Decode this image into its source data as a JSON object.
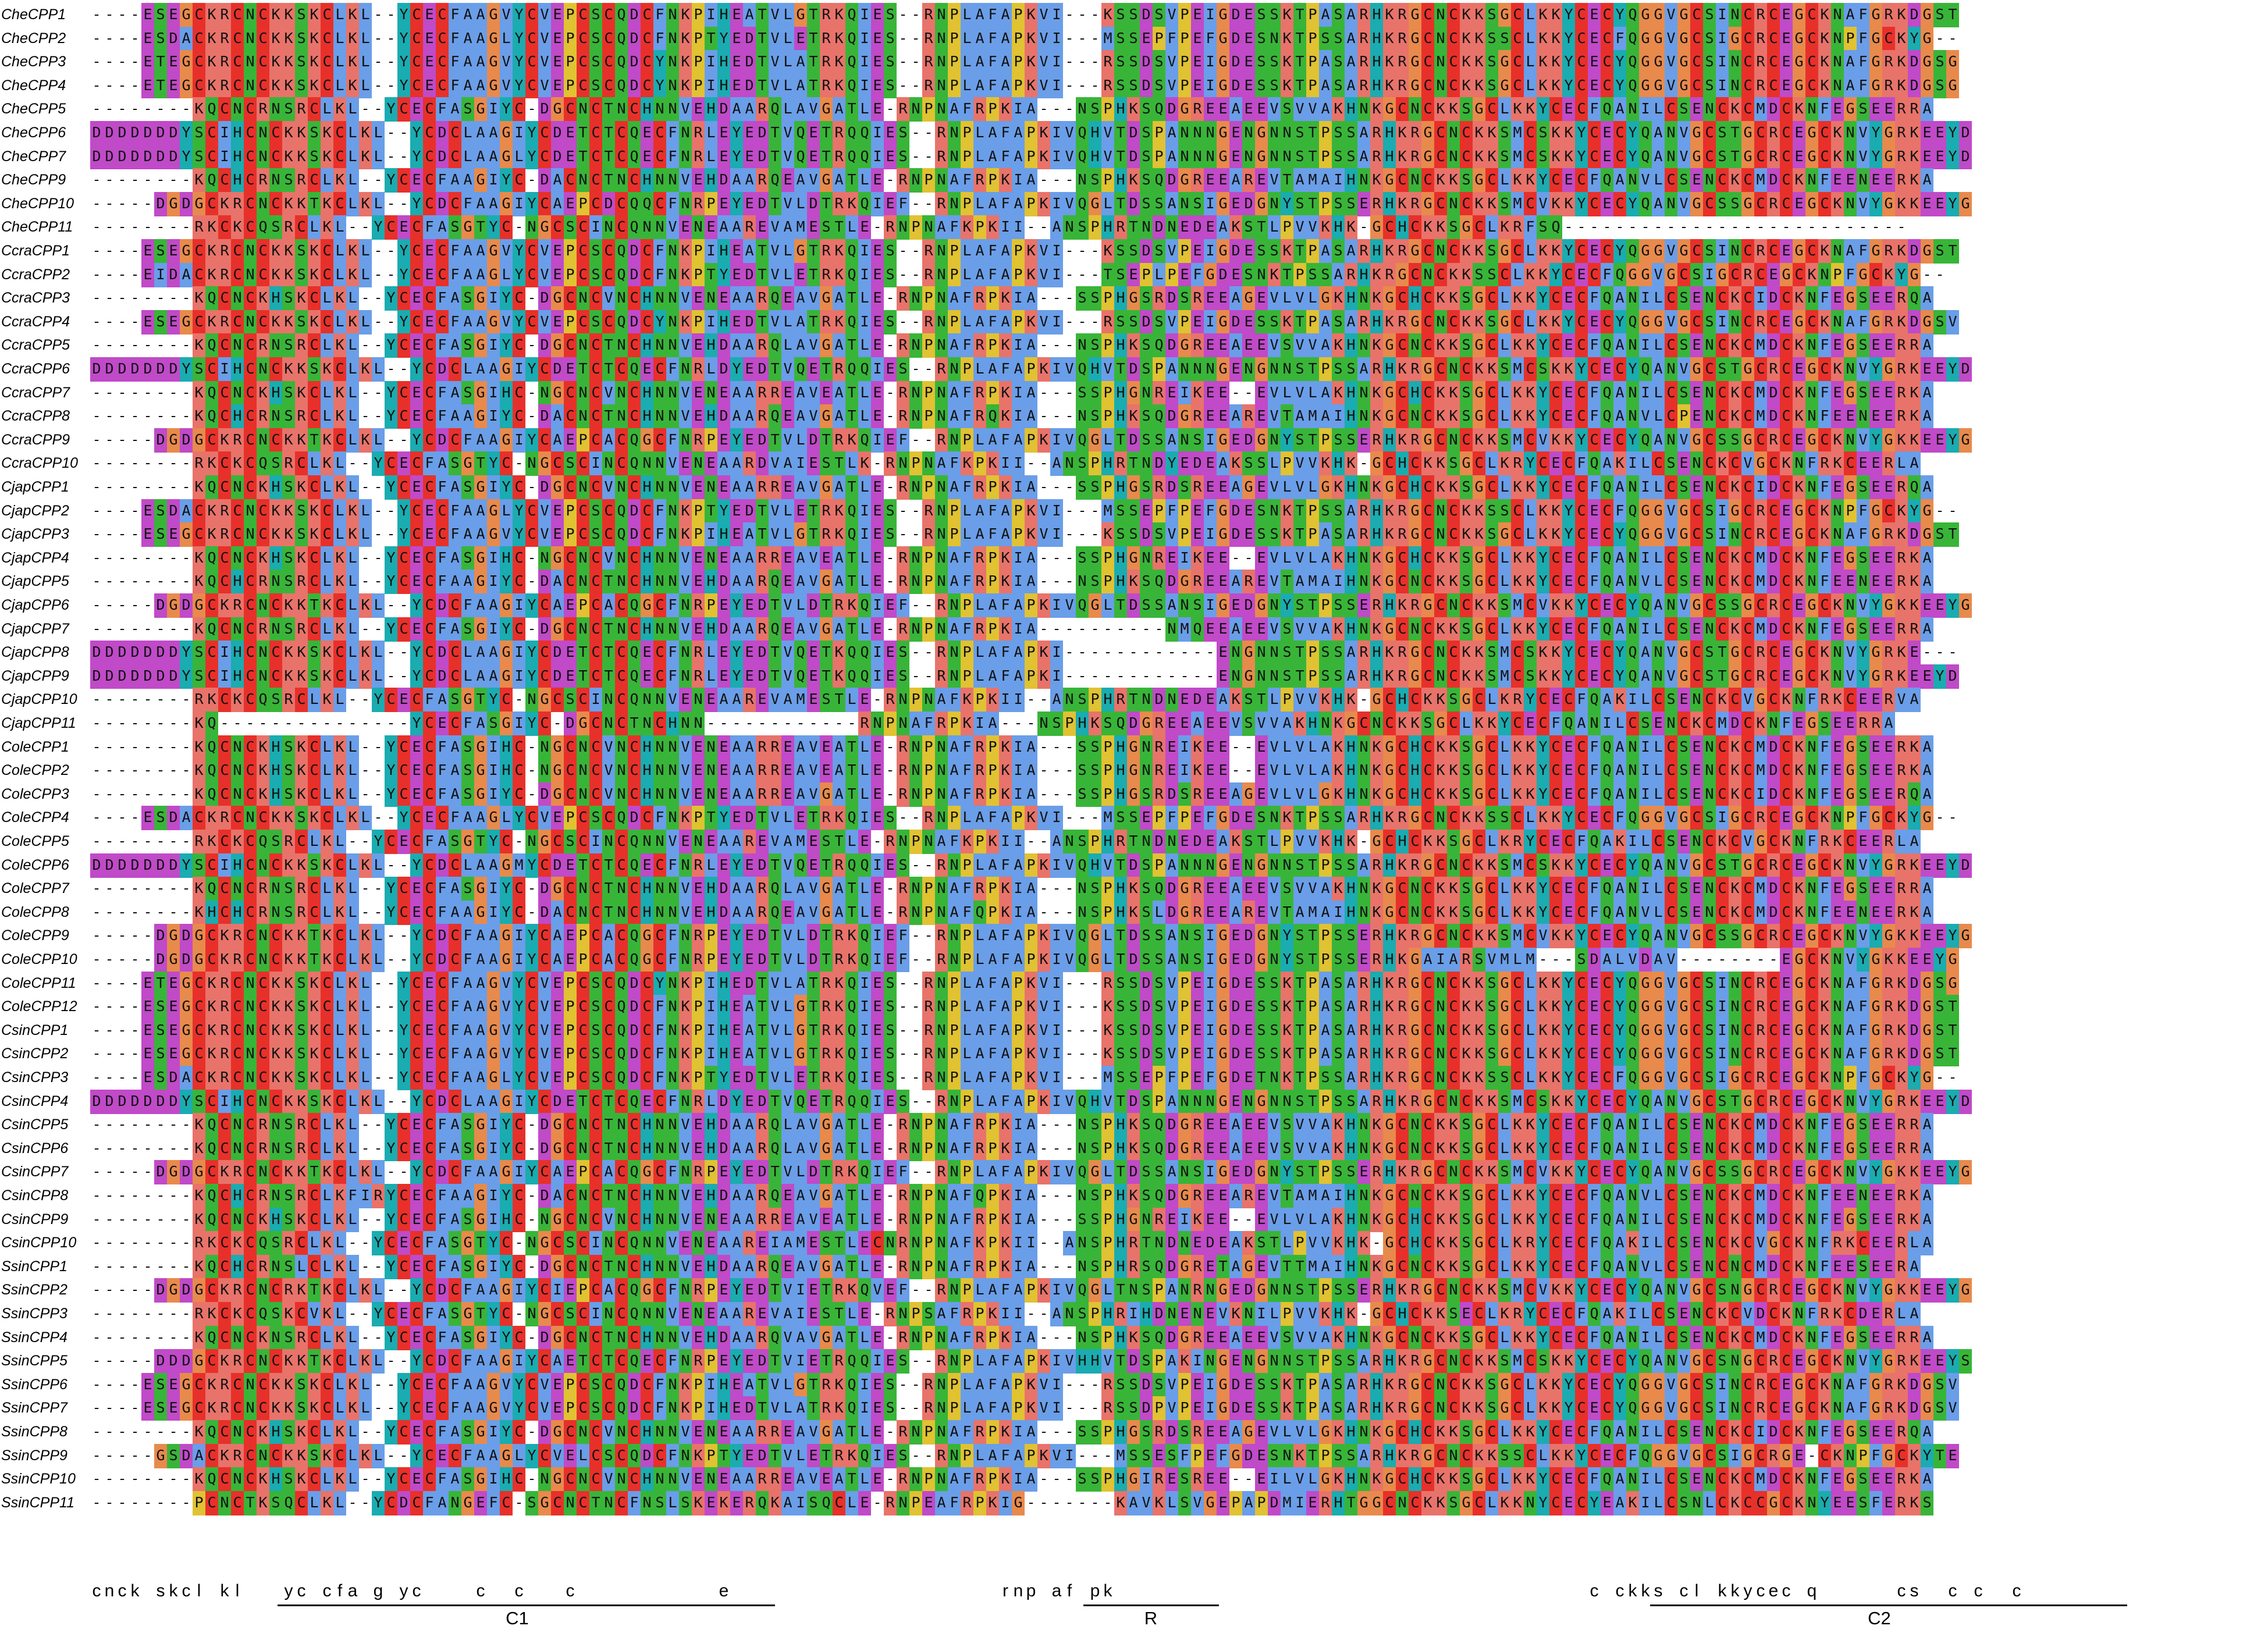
{
  "alignment": {
    "labels": [
      "CheCPP1",
      "CheCPP2",
      "CheCPP3",
      "CheCPP4",
      "CheCPP5",
      "CheCPP6",
      "CheCPP7",
      "CheCPP9",
      "CheCPP10",
      "CheCPP11",
      "CcraCPP1",
      "CcraCPP2",
      "CcraCPP3",
      "CcraCPP4",
      "CcraCPP5",
      "CcraCPP6",
      "CcraCPP7",
      "CcraCPP8",
      "CcraCPP9",
      "CcraCPP10",
      "CjapCPP1",
      "CjapCPP2",
      "CjapCPP3",
      "CjapCPP4",
      "CjapCPP5",
      "CjapCPP6",
      "CjapCPP7",
      "CjapCPP8",
      "CjapCPP9",
      "CjapCPP10",
      "CjapCPP11",
      "ColeCPP1",
      "ColeCPP2",
      "ColeCPP3",
      "ColeCPP4",
      "ColeCPP5",
      "ColeCPP6",
      "ColeCPP7",
      "ColeCPP8",
      "ColeCPP9",
      "ColeCPP10",
      "ColeCPP11",
      "ColeCPP12",
      "CsinCPP1",
      "CsinCPP2",
      "CsinCPP3",
      "CsinCPP4",
      "CsinCPP5",
      "CsinCPP6",
      "CsinCPP7",
      "CsinCPP8",
      "CsinCPP9",
      "CsinCPP10",
      "SsinCPP1",
      "SsinCPP2",
      "SsinCPP3",
      "SsinCPP4",
      "SsinCPP5",
      "SsinCPP6",
      "SsinCPP7",
      "SsinCPP8",
      "SsinCPP9",
      "SsinCPP10",
      "SsinCPP11"
    ],
    "sequences": [
      "----ESEGCKRCNCKKSKCLKL--YCECFAAGVYCVEPCSCQDCFNKPIHEATVLGTRKQIES--RNPLAFAPKVI---KSSDSVPEIGDESSKTPASARHKRGCNCKKSGCLKKYCECYQGGVGCSINCRCEGCKNAFGRKDGST",
      "----ESDACKRCNCKKSKCLKL--YCECFAAGLYCVEPCSCQDCFNKPTYEDTVLETRKQIES--RNPLAFAPKVI---MSSEPFPEFGDESNKTPSSARHKRGCNCKKSSCLKKYCECFQGGVGCSIGCRCEGCKNPFGCKYG--",
      "----ETEGCKRCNCKKSKCLKL--YCECFAAGVYCVEPCSCQDCYNKPIHEDTVLATRKQIES--RNPLAFAPKVI---RSSDSVPEIGDESSKTPASARHKRGCNCKKSGCLKKYCECYQGGVGCSINCRCEGCKNAFGRKDGSG",
      "----ETEGCKRCNCKKSKCLKL--YCECFAAGVYCVEPCSCQDCYNKPIHEDTVLATRKQIES--RNPLAFAPKVI---RSSDSVPEIGDESSKTPASARHKRGCNCKKSGCLKKYCECYQGGVGCSINCRCEGCKNAFGRKDGSG",
      "--------KQCNCRNSRCLKL--YCECFASGIYC-DGCNCTNCHNNVEHDAARQLAVGATLE-RNPNAFRPKIA---NSPHKSQDGREEAEEVSVVAKHNKGCNCKKSGCLKKYCECFQANILCSENCKCMDCKNFEGSEERRA",
      "DDDDDDDYSCIHCNCKKSKCLKL--YCDCLAAGIYCDETCTCQECFNRLEYEDTVQETRQQIES--RNPLAFAPKIVQHVTDSPANNNGENGNNSTPSSARHKRGCNCKKSMCSKKYCECYQANVGCSTGCRCEGCKNVYGRKEEYD",
      "DDDDDDDYSCIHCNCKKSKCLKL--YCDCLAAGLYCDETCTCQECFNRLEYEDTVQETRQQIES--RNPLAFAPKIVQHVTDSPANNNGENGNNSTPSSARHKRGCNCKKSMCSKKYCECYQANVGCSTGCRCEGCKNVYGRKEEYD",
      "--------KQCHCRNSRCLKL--YCECFAAGIYC-DACNCTNCHNNVEHDAARQEAVGATLE-RNPNAFRPKIA---NSPHKSQDGREEAREVTAMAIHNKGCNCKKSGCLKKYCECFQANVLCSENCKCMDCKNFEENEERKA",
      "-----DGDGCKRCNCKKTKCLKL--YCDCFAAGIYCAEPCDCQQCFNRPEYEDTVLDTRKQIEF--RNPLAFAPKIVQGLTDSSANSIGEDGNYSTPSSERHKRGCNCKKSMCVKKYCECYQANVGCSSGCRCEGCKNVYGKKEEYG",
      "--------RKCKCQSRCLKL--YCECFASGTYC-NGCSCINCQNNVENEAAREVAMESTLE-RNPNAFKPKII--ANSPHRTNDNEDEAKSTLPVVKHK-GCHCKKSGCLKRFSQ---------------------------",
      "----ESEGCKRCNCKKSKCLKL--YCECFAAGVYCVEPCSCQDCFNKPIHEATVLGTRKQIES--RNPLAFAPKVI---KSSDSVPEIGDESSKTPASARHKRGCNCKKSGCLKKYCECYQGGVGCSINCRCEGCKNAFGRKDGST",
      "----EIDACKRCNCKKSKCLKL--YCECFAAGLYCVEPCSCQDCFNKPTYEDTVLETRKQIES--RNPLAFAPKVI---TSEPLPEFGDESNKTPSSARHKRGCNCKKSSCLKKYCECFQGGVGCSIGCRCEGCKNPFGCKYG--",
      "--------KQCNCKHSKCLKL--YCECFASGIYC-DGCNCVNCHNNVENEAARQEAVGATLE-RNPNAFRPKIA---SSPHGSRDSREEAGEVLVLGKHNKGCHCKKSGCLKKYCECFQANILCSENCKCIDCKNFEGSEERQA",
      "----ESEGCKRCNCKKSKCLKL--YCECFAAGVYCVEPCSCQDCYNKPIHEDTVLATRKQIES--RNPLAFAPKVI---RSSDSVPEIGDESSKTPASARHKRGCNCKKSGCLKKYCECYQGGVGCSINCRCEGCKNAFGRKDGSV",
      "--------KQCNCRNSRCLKL--YCECFASGIYC-DGCNCTNCHNNVEHDAARQLAVGATLE-RNPNAFRPKIA---NSPHKSQDGREEAEEVSVVAKHNKGCNCKKSGCLKKYCECFQANILCSENCKCMDCKNFEGSEERRA",
      "DDDDDDDYSCIHCNCKKSKCLKL--YCDCLAAGIYCDETCTCQECFNRLDYEDTVQETRQQIES--RNPLAFAPKIVQHVTDSPANNNGENGNNSTPSSARHKRGCNCKKSMCSKKYCECYQANVGCSTGCRCEGCKNVYGRKEEYD",
      "--------KQCNCKHSKCLKL--YCECFASGIHC-NGCNCVNCHNNVENEAARREAVEATLE-RNPNAFRPKIA---SSPHGNREIKEE--EVLVLAKHNKGCHCKKSGCLKKYCECFQANILCSENCKCMDCKNFEGSEERKA",
      "--------KQCHCRNSRCLKL--YCECFAAGIYC-DACNCTNCHNNVEHDAARQEAVGATLE-RNPNAFRQKIA---NSPHKSQDGREEAREVTAMAIHNKGCNCKKSGCLKKYCECFQANVLCPENCKCMDCKNFEENEERKA",
      "-----DGDGCKRCNCKKTKCLKL--YCDCFAAGIYCAEPCACQGCFNRPEYEDTVLDTRKQIEF--RNPLAFAPKIVQGLTDSSANSIGEDGNYSTPSSERHKRGCNCKKSMCVKKYCECYQANVGCSSGCRCEGCKNVYGKKEEYG",
      "--------RKCKCQSRCLKL--YCECFASGTYC-NGCSCINCQNNVENEAARDVAIESTLK-RNPNAFKPKII--ANSPHRTNDYEDEAKSSLPVVKHK-GCHCKKSGCLKRYCECFQAKILCSENCKCVGCKNFRKCEERLA",
      "--------KQCNCKHSKCLKL--YCECFASGIYC-DGCNCVNCHNNVENEAARREAVGATLE-RNPNAFRPKIA---SSPHGSRDSREEAGEVLVLGKHNKGCHCKKSGCLKKYCECFQANILCSENCKCIDCKNFEGSEERQA",
      "----ESDACKRCNCKKSKCLKL--YCECFAAGLYCVEPCSCQDCFNKPTYEDTVLETRKQIES--RNPLAFAPKVI---MSSEPFPEFGDESNKTPSSARHKRGCNCKKSSCLKKYCECFQGGVGCSIGCRCEGCKNPFGCKYG--",
      "----ESEGCKRCNCKKSKCLKL--YCECFAAGVYCVEPCSCQDCFNKPIHEATVLGTRKQIES--RNPLAFAPKVI---KSSDSVPEIGDESSKTPASARHKRGCNCKKSGCLKKYCECYQGGVGCSINCRCEGCKNAFGRKDGST",
      "--------KQCNCKHSKCLKL--YCECFASGIHC-NGCNCVNCHNNVENEAARREAVEATLE-RNPNAFRPKIA---SSPHGNREIKEE--EVLVLAKHNKGCHCKKSGCLKKYCECFQANILCSENCKCMDCKNFEGSEERKA",
      "--------KQCHCRNSRCLKL--YCECFAAGIYC-DACNCTNCHNNVEHDAARQEAVGATLE-RNPNAFRPKIA---NSPHKSQDGREEAREVTAMAIHNKGCNCKKSGCLKKYCECFQANVLCSENCKCMDCKNFEENEERKA",
      "-----DGDGCKRCNCKKTKCLKL--YCDCFAAGIYCAEPCACQGCFNRPEYEDTVLDTRKQIEF--RNPLAFAPKIVQGLTDSSANSIGEDGNYSTPSSERHKRGCNCKKSMCVKKYCECYQANVGCSSGCRCEGCKNVYGKKEEYG",
      "--------KQCNCRNSRCLKL--YCECFASGIYC-DGCNCTNCHNNVEHDAARQEAVGATLE-RNPNAFRPKIA----------NMQEEAEEVSVVAKHNKGCNCKKSGCLKKYCECFQANILCSENCKCMDCKNFEGSEERRA",
      "DDDDDDDYSCIHCNCKKSKCLKL--YCDCLAAGIYCDETCTCQECFNRLEYEDTVQETKQQIES--RNPLAFAPKI------------ENGNNSTPSSARHKRGCNCKKSMCSKKYCECYQANVGCSTGCRCEGCKNVYGRKE---",
      "DDDDDDDYSCIHCNCKKSKCLKL--YCDCLAAGIYCDETCTCQECFNRLEYEDTVQETKQQIES--RNPLAFAPKI------------ENGNNSTPSSARHKRGCNCKKSMCSKKYCECYQANVGCSTGCRCEGCKNVYGRKEEYD",
      "--------RKCKCQSRCLKL--YCECFASGTYC-NGCSCINCQNNVENEAAREVAMESTLE-RNPNAFKPKII--ANSPHRTNDNEDEAKSTLPVVKHK-GCHCKKSGCLKRYCECFQAKILCSENCKCVGCKNFRKCEERVA",
      "--------KQ---------------YCECFASGIYC-DGCNCTNCHNN------------RNPNAFRPKIA---NSPHKSQDGREEAEEVSVVAKHNKGCNCKKSGCLKKYCECFQANILCSENCKCMDCKNFEGSEERRA",
      "--------KQCNCKHSKCLKL--YCECFASGIHC-NGCNCVNCHNNVENEAARREAVEATLE-RNPNAFRPKIA---SSPHGNREIKEE--EVLVLAKHNKGCHCKKSGCLKKYCECFQANILCSENCKCMDCKNFEGSEERKA",
      "--------KQCNCKHSKCLKL--YCECFASGIHC-NGCNCVNCHNNVENEAARREAVEATLE-RNPNAFRPKIA---SSPHGNREIKEE--EVLVLAKHNKGCHCKKSGCLKKYCECFQANILCSENCKCMDCKNFEGSEERKA",
      "--------KQCNCKHSKCLKL--YCECFASGIYC-DGCNCVNCHNNVENEAARREAVGATLE-RNPNAFRPKIA---SSPHGSRDSREEAGEVLVLGKHNKGCHCKKSGCLKKYCECFQANILCSENCKCIDCKNFEGSEERQA",
      "----ESDACKRCNCKKSKCLKL--YCECFAAGLYCVEPCSCQDCFNKPTYEDTVLETRKQIES--RNPLAFAPKVI---MSSEPFPEFGDESNKTPSSARHKRGCNCKKSSCLKKYCECFQGGVGCSIGCRCEGCKNPFGCKYG--",
      "--------RKCKCQSRCLKL--YCECFASGTYC-NGCSCINCQNNVENEAAREVAMESTLE-RNPNAFKPKII--ANSPHRTNDNEDEAKSTLPVVKHK-GCHCKKSGCLKRYCECFQAKILCSENCKCVGCKNFRKCEERLA",
      "DDDDDDDYSCIHCNCKKSKCLKL--YCDCLAAGMYCDETCTCQECFNRLEYEDTVQETRQQIES--RNPLAFAPKIVQHVTDSPANNNGENGNNSTPSSARHKRGCNCKKSMCSKKYCECYQANVGCSTGCRCEGCKNVYGRKEEYD",
      "--------KQCNCRNSRCLKL--YCECFASGIYC-DGCNCTNCHNNVEHDAARQLAVGATLE-RNPNAFRPKIA---NSPHKSQDGREEAEEVSVVAKHNKGCNCKKSGCLKKYCECFQANILCSENCKCMDCKNFEGSEERRA",
      "--------KHCHCRNSRCLKL--YCECFAAGIYC-DACNCTNCHNNVEHDAARQEAVGATLE-RNPNAFQPKIA---NSPHKSLDGREEAREVTAMAIHNKGCNCKKSGCLKKYCECFQANVLCSENCKCMDCKNFEENEERKA",
      "-----DGDGCKRCNCKKTKCLKL--YCDCFAAGIYCAEPCACQGCFNRPEYEDTVLDTRKQIEF--RNPLAFAPKIVQGLTDSSANSIGEDGNYSTPSSERHKRGCNCKKSMCVKKYCECYQANVGCSSGCRCEGCKNVYGKKEEYG",
      "-----DGDGCKRCNCKKTKCLKL--YCDCFAAGIYCAEPCACQGCFNRPEYEDTVLDTRKQIEF--RNPLAFAPKIVQGLTDSSANSIGEDGNYSTPSSERHKGAIARSVMLM---SDALVDAV--------EGCKNVYGKKEEYG",
      "----ETEGCKRCNCKKSKCLKL--YCECFAAGVYCVEPCSCQDCYNKPIHEDTVLATRKQIES--RNPLAFAPKVI---RSSDSVPEIGDESSKTPASARHKRGCNCKKSGCLKKYCECYQGGVGCSINCRCEGCKNAFGRKDGSG",
      "----ESEGCKRCNCKKSKCLKL--YCECFAAGVYCVEPCSCQDCFNKPIHEATVLGTRKQIES--RNPLAFAPKVI---KSSDSVPEIGDESSKTPASARHKRGCNCKKSGCLKKYCECYQGGVGCSINCRCEGCKNAFGRKDGST",
      "----ESEGCKRCNCKKSKCLKL--YCECFAAGVYCVEPCSCQDCFNKPIHEATVLGTRKQIES--RNPLAFAPKVI---KSSDSVPEIGDESSKTPASARHKRGCNCKKSGCLKKYCECYQGGVGCSINCRCEGCKNAFGRKDGST",
      "----ESEGCKRCNCKKSKCLKL--YCECFAAGVYCVEPCSCQDCFNKPIHEATVLGTRKQIES--RNPLAFAPKVI---KSSDSVPEIGDESSKTPASARHKRGCNCKKSGCLKKYCECYQGGVGCSINCRCEGCKNAFGRKDGST",
      "----ESDACKRCNCKKSKCLKL--YCECFAAGLYCVEPCSCQDCFNKPTYEDTVLETRKQIES--RNPLAFAPKVI---MSSEPFPEFGDETNKTPSSARHKRGCNCKKSSCLKKYCECFQGGVGCSIGCRCEGCKNPFGCKYG--",
      "DDDDDDDYSCIHCNCKKSKCLKL--YCDCLAAGIYCDETCTCQECFNRLDYEDTVQETRQQIES--RNPLAFAPKIVQHVTDSPANNNGENGNNSTPSSARHKRGCNCKKSMCSKKYCECYQANVGCSTGCRCEGCKNVYGRKEEYD",
      "--------KQCNCRNSRCLKL--YCECFASGIYC-DGCNCTNCHNNVEHDAARQLAVGATLE-RNPNAFRPKIA---NSPHKSQDGREEAEEVSVVAKHNKGCNCKKSGCLKKYCECFQANILCSENCKCMDCKNFEGSEERRA",
      "--------KQCNCRNSRCLKL--YCECFASGIYC-DGCNCTNCHNNVEHDAARQLAVGATLE-RNPNAFRPKIA---NSPHKSQDGREEAEEVSVVAKHNKGCNCKKSGCLKKYCECFQANILCSENCKCMDCKNFEGSEERRA",
      "-----DGDGCKRCNCKKTKCLKL--YCDCFAAGIYCAEPCACQGCFNRPEYEDTVLDTRKQIEF--RNPLAFAPKIVQGLTDSSANSIGEDGNYSTPSSERHKRGCNCKKSMCVKKYCECYQANVGCSSGCRCEGCKNVYGKKEEYG",
      "--------KQCHCRNSRCLKFIRYCECFAAGIYC-DACNCTNCHNNVEHDAARQEAVGATLE-RNPNAFQPKIA---NSPHKSQDGREEAREVTAMAIHNKGCNCKKSGCLKKYCECFQANVLCSENCKCMDCKNFEENEERKA",
      "--------KQCNCKHSKCLKL--YCECFASGIHC-NGCNCVNCHNNVENEAARREAVEATLE-RNPNAFRPKIA---SSPHGNREIKEE--EVLVLAKHNKGCHCKKSGCLKKYCECFQANILCSENCKCMDCKNFEGSEERKA",
      "--------RKCKCQSRCLKL--YCECFASGTYC-NGCSCINCQNNVENEAAREIAMESTLECNRNPNAFKPKII--ANSPHRTNDNEDEAKSTLPVVKHK-GCHCKKSGCLKRYCECFQAKILCSENCKCVGCKNFRKCEERLA",
      "--------KQCHCRNSLCLKL--YCECFASGIYC-DGCNCTNCHNNVEHDAARQEAVGATLE-RNPNAFRPKIA---NSPHRSQDGRETAGEVTTMAIHNKGCNCKKSGCLKKYCECFQANVLCSENCNCMDCKNFEESEERA",
      "-----DGDGCKRCNCRKTKCLKL--YCDCFAAGIYCIEPCACQGCFNRPEYEDTVIETRKQVEF--RNPLAFAPKIVQGLTNSPANRNGEDGNNSTPSSERHKRGCNCKKSMCVKKYCECYQANVGCSNGCRCEGCKNVYGKKEEYG",
      "--------RKCKCQSKCVKL--YCECFASGTYC-NGCSCINCQNNVENEAAREVAIESTLE-RNPSAFRPKII--ANSPHRIHDNENEVKNILPVVKHK-GCHCKKSECLKRYCECFQAKILCSENCKCVDCKNFRKCDERLA",
      "--------KQCNCKNSRCLKL--YCECFASGIYC-DGCNCTNCHNNVEHDAARQVAVGATLE-RNPNAFRPKIA---NSPHKSQDGREEAEEVSVVAKHNKGCNCKKSGCLKKYCECFQANILCSENCKCMDCKNFEGSEERRA",
      "-----DDDGCKRCNCKKTKCLKL--YCDCFAAGIYCAETCTCQECFNRPEYEDTVIETRQQIES--RNPLAFAPKIVHHVTDSPAKINGENGNNSTPSSARHKRGCNCKKSMCSKKYCECYQANVGCSNGCRCEGCKNVYGRKEEYS",
      "----ESEGCKRCNCKKSKCLKL--YCECFAAGVYCVEPCSCQDCFNKPIHEATVLGTRKQIES--RNPLAFAPKVI---RSSDSVPEIGDESSKTPASARHKRGCNCKKSGCLKKYCECYQGGVGCSINCRCEGCKNAFGRKDGSV",
      "----ESEGCKRCNCKKSKCLKL--YCECFAAGVYCVEPCSCQDCFNKPIHEDTVLATRKQIES--RNPLAFAPKVI---RSSDPVPEIGDESSKTPASARHKRGCNCKKSGCLKKYCECYQGGVGCSINCRCEGCKNAFGRKDGSV",
      "--------KQCNCKHSKCLKL--YCECFASGIYC-DGCNCVNCHNNVENEAARREAVGATLE-RNPNAFRPKIA---SSPHGSRDSREEAGEVLVLGKHNKGCHCKKSGCLKKYCECFQANILCSENCKCIDCKNFEGSEERQA",
      "-----GSDACKRCNCKKSKCLKL--YCECFAAGLYCVELCSCQDCFNKPTYEDTVLETRKQIES--RNPLAFAPKVI---MSSESFPEFGDESNKTPSSARHKRGCNCKKSSCLKKYCECFQGGVGCSIGCRGE-CKNPFGCKYTE",
      "--------KQCNCKHSKCLKL--YCECFASGIHC-NGCNCVNCHNNVENEAARREAVEATLE-RNPNAFRPKIA---SSPHGIRESREE--EILVLGKHNKGCHCKKSGCLKKYCECFQANILCSENCKCMDCKNFEGSEERKA",
      "--------PCNCTKSQCLKL--YCDCFANGEFC-SGCNCTNCFNSLSKEKERQKAISQCLE-RNPEAFRPKIG-------KAVKLSVGEPAPDMIERHTGGCNCKKSGCLKKNYCECYEAKILCSNLCKCCGCKNYEESFERKS"
    ]
  },
  "motifs": {
    "consensus": "cnck skcl kl   yc cfa g yc    c  c   c           e                     rnp af pk                                     c ckks cl kkycec q      cs  c c  c",
    "labels": [
      "C1",
      "R",
      "C2"
    ]
  },
  "colors": {
    "C": "#e8302a",
    "G": "#e88a4c",
    "P": "#e0c232",
    "K": "#e8736a",
    "R": "#e8736a",
    "H": "#1aacb0",
    "S": "#38b538",
    "T": "#38b538",
    "N": "#38b538",
    "Q": "#38b538",
    "D": "#c04ac8",
    "E": "#c04ac8",
    "A": "#6a9ee8",
    "I": "#6a9ee8",
    "L": "#6a9ee8",
    "M": "#6a9ee8",
    "V": "#6a9ee8",
    "F": "#6a9ee8",
    "W": "#6a9ee8",
    "Y": "#1aacb0"
  }
}
